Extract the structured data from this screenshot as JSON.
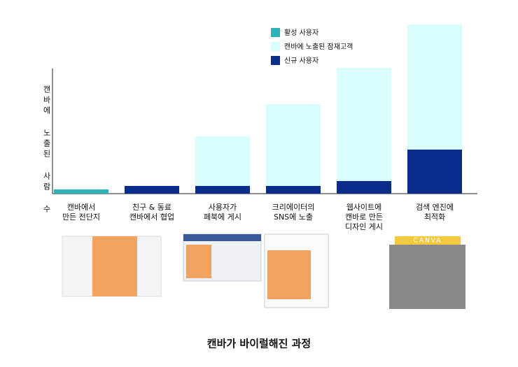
{
  "chart_data": {
    "type": "stacked-bar",
    "y_label": "캔바에 노출된 사람 수",
    "categories": [
      [
        "캔바에서",
        "만든 전단지"
      ],
      [
        "친구 & 동료",
        "캔바에서 협업"
      ],
      [
        "사용자가",
        "페북에 게시"
      ],
      [
        "크리에이터의",
        "SNS에 노출"
      ],
      [
        "웹사이트에",
        "캔바로 만든",
        "디자인 게시"
      ],
      [
        "검색 엔진에",
        "최적화"
      ]
    ],
    "series": [
      {
        "name": "활성 사용자",
        "color": "#2bb3b8",
        "values": [
          6,
          0,
          0,
          0,
          0,
          0
        ]
      },
      {
        "name": "신규 사용자",
        "color": "#0a2d8c",
        "values": [
          0,
          11,
          11,
          11,
          18,
          63
        ]
      },
      {
        "name": "캔바에 노출된 잠재고객",
        "color": "#d9fdfd",
        "values": [
          0,
          0,
          71,
          117,
          162,
          179
        ]
      }
    ],
    "legend_order": [
      0,
      2,
      1
    ],
    "banner": "CANVA",
    "caption": "캔바가 바이럴해진 과정"
  }
}
